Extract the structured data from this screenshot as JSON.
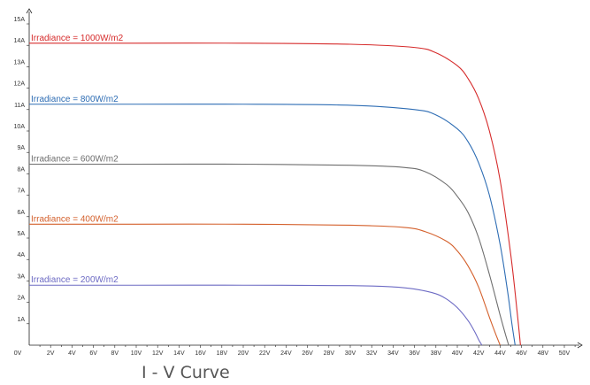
{
  "chart_data": {
    "type": "line",
    "title": "I - V Curve",
    "xlabel": "",
    "ylabel": "",
    "xlim": [
      0,
      51
    ],
    "ylim": [
      0,
      16
    ],
    "grid": false,
    "x_ticks": [
      {
        "value": 0,
        "label": "0V"
      },
      {
        "value": 2,
        "label": "2V"
      },
      {
        "value": 4,
        "label": "4V"
      },
      {
        "value": 6,
        "label": "6V"
      },
      {
        "value": 8,
        "label": "8V"
      },
      {
        "value": 10,
        "label": "10V"
      },
      {
        "value": 12,
        "label": "12V"
      },
      {
        "value": 14,
        "label": "14V"
      },
      {
        "value": 16,
        "label": "16V"
      },
      {
        "value": 18,
        "label": "18V"
      },
      {
        "value": 20,
        "label": "20V"
      },
      {
        "value": 22,
        "label": "22V"
      },
      {
        "value": 24,
        "label": "24V"
      },
      {
        "value": 26,
        "label": "26V"
      },
      {
        "value": 28,
        "label": "28V"
      },
      {
        "value": 30,
        "label": "30V"
      },
      {
        "value": 32,
        "label": "32V"
      },
      {
        "value": 34,
        "label": "34V"
      },
      {
        "value": 36,
        "label": "36V"
      },
      {
        "value": 38,
        "label": "38V"
      },
      {
        "value": 40,
        "label": "40V"
      },
      {
        "value": 42,
        "label": "42V"
      },
      {
        "value": 44,
        "label": "44V"
      },
      {
        "value": 46,
        "label": "46V"
      },
      {
        "value": 48,
        "label": "48V"
      },
      {
        "value": 50,
        "label": "50V"
      }
    ],
    "y_ticks": [
      {
        "value": 1,
        "label": "1A"
      },
      {
        "value": 2,
        "label": "2A"
      },
      {
        "value": 3,
        "label": "3A"
      },
      {
        "value": 4,
        "label": "4A"
      },
      {
        "value": 5,
        "label": "5A"
      },
      {
        "value": 6,
        "label": "6A"
      },
      {
        "value": 7,
        "label": "7A"
      },
      {
        "value": 8,
        "label": "8A"
      },
      {
        "value": 9,
        "label": "9A"
      },
      {
        "value": 10,
        "label": "10A"
      },
      {
        "value": 11,
        "label": "11A"
      },
      {
        "value": 12,
        "label": "12A"
      },
      {
        "value": 13,
        "label": "13A"
      },
      {
        "value": 14,
        "label": "14A"
      },
      {
        "value": 15,
        "label": "15A"
      }
    ],
    "series": [
      {
        "name": "Irradiance = 1000W/m2",
        "color": "#d62b2b",
        "x": [
          0,
          10,
          20,
          30,
          36,
          38,
          40,
          41,
          42,
          43,
          44,
          45,
          45.6,
          45.9
        ],
        "y": [
          14.1,
          14.1,
          14.1,
          14.05,
          13.9,
          13.65,
          13.05,
          12.45,
          11.5,
          10.0,
          7.7,
          4.2,
          1.5,
          0
        ]
      },
      {
        "name": "Irradiance = 800W/m2",
        "color": "#2e6db4",
        "x": [
          0,
          10,
          20,
          30,
          36,
          38,
          40,
          41,
          42,
          43,
          44,
          44.7,
          45.1,
          45.4
        ],
        "y": [
          11.25,
          11.25,
          11.25,
          11.2,
          11.0,
          10.75,
          10.1,
          9.5,
          8.5,
          7.0,
          4.7,
          2.5,
          1.0,
          0
        ]
      },
      {
        "name": "Irradiance = 600W/m2",
        "color": "#6e6e6e",
        "x": [
          0,
          10,
          20,
          30,
          35,
          37,
          39,
          40,
          41,
          42,
          43,
          44,
          44.5,
          44.8
        ],
        "y": [
          8.45,
          8.45,
          8.45,
          8.4,
          8.3,
          8.1,
          7.5,
          6.95,
          6.2,
          5.0,
          3.3,
          1.4,
          0.5,
          0
        ]
      },
      {
        "name": "Irradiance = 400W/m2",
        "color": "#d4602c",
        "x": [
          0,
          10,
          20,
          30,
          35,
          37,
          39,
          40,
          41,
          42,
          43,
          43.6,
          44.0
        ],
        "y": [
          5.65,
          5.65,
          5.65,
          5.6,
          5.5,
          5.3,
          4.85,
          4.4,
          3.7,
          2.7,
          1.3,
          0.5,
          0
        ]
      },
      {
        "name": "Irradiance = 200W/m2",
        "color": "#6d6bc4",
        "x": [
          0,
          10,
          20,
          30,
          34,
          36,
          38,
          39,
          40,
          41,
          41.6,
          42.0,
          42.3
        ],
        "y": [
          2.8,
          2.8,
          2.8,
          2.78,
          2.72,
          2.62,
          2.4,
          2.15,
          1.75,
          1.15,
          0.65,
          0.25,
          0
        ]
      }
    ]
  }
}
